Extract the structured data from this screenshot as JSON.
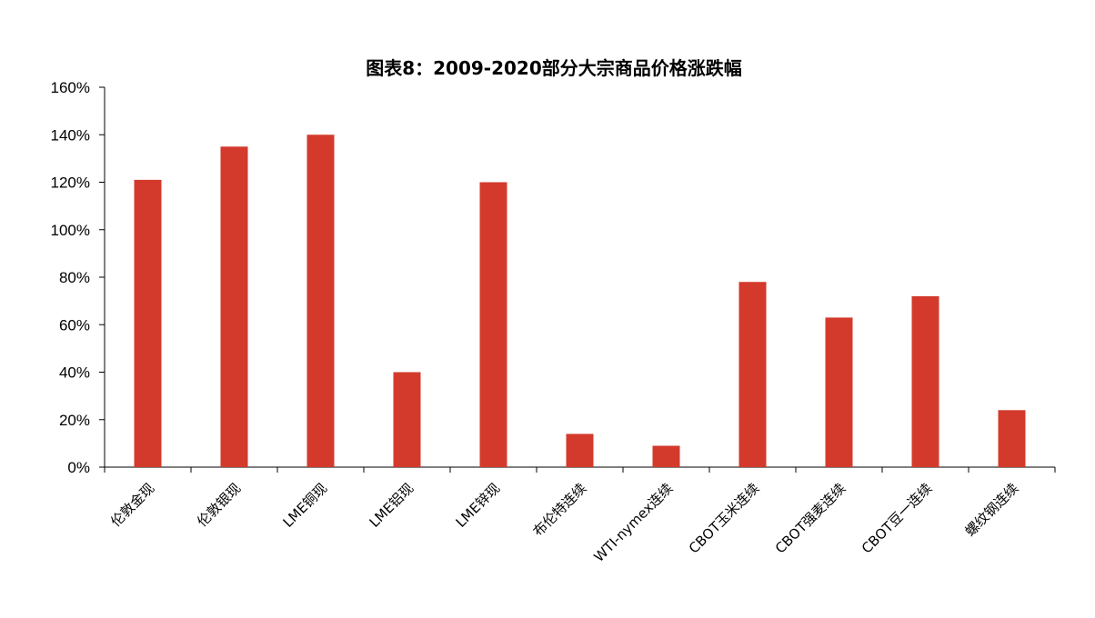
{
  "chart_data": {
    "type": "bar",
    "title": "图表8：2009-2020部分大宗商品价格涨跌幅",
    "categories": [
      "伦敦金现",
      "伦敦银现",
      "LME铜现",
      "LME铝现",
      "LME锌现",
      "布伦特连续",
      "WTI-nymex连续",
      "CBOT玉米连续",
      "CBOT强麦连续",
      "CBOT豆一连续",
      "螺纹钢连续"
    ],
    "values": [
      121,
      135,
      140,
      40,
      120,
      14,
      9,
      78,
      63,
      72,
      24
    ],
    "ylim": [
      0,
      160
    ],
    "yticks": [
      "0%",
      "20%",
      "40%",
      "60%",
      "80%",
      "100%",
      "120%",
      "140%",
      "160%"
    ],
    "xlabel": "",
    "ylabel": "",
    "grid": false,
    "bar_color": "#d33a2c"
  }
}
